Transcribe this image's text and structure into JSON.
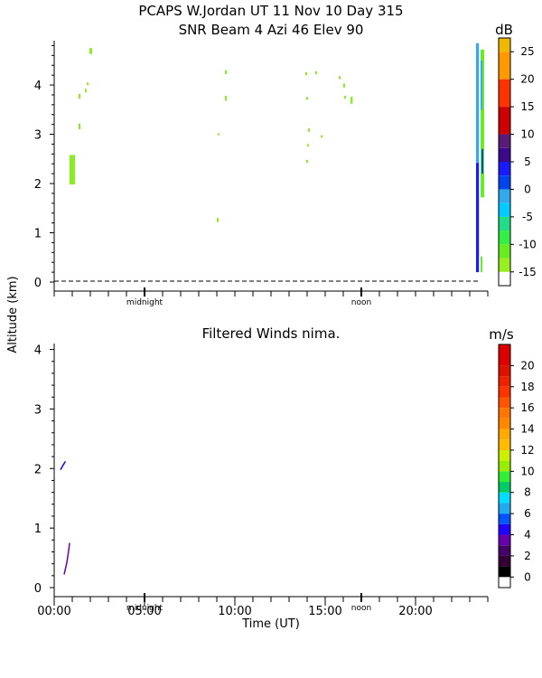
{
  "chart_data": [
    {
      "type": "heatmap",
      "title": "PCAPS W.Jordan UT  11 Nov 10 Day 315",
      "subtitle": "SNR Beam 4 Azi  46 Elev 90",
      "ylabel": "Altitude (km)",
      "xlabel": "",
      "x_unit": "hours UT",
      "xlim": [
        0,
        24
      ],
      "ylim": [
        0,
        4.9
      ],
      "y_ticks": [
        0,
        1,
        2,
        3,
        4
      ],
      "time_markers": [
        {
          "label": "midnight",
          "x": 5.0
        },
        {
          "label": "noon",
          "x": 17.0
        }
      ],
      "colorbar": {
        "unit": "dB",
        "ticks": [
          25,
          20,
          15,
          10,
          5,
          0,
          -5,
          -10,
          -15
        ],
        "bands": [
          {
            "from": 25,
            "to": 27.5,
            "color": "#f0b800"
          },
          {
            "from": 20,
            "to": 25,
            "color": "#ff9900"
          },
          {
            "from": 15,
            "to": 20,
            "color": "#ff3300"
          },
          {
            "from": 10,
            "to": 15,
            "color": "#cc0000"
          },
          {
            "from": 7.5,
            "to": 10,
            "color": "#5a1a78"
          },
          {
            "from": 5,
            "to": 7.5,
            "color": "#3a0a8a"
          },
          {
            "from": 2.5,
            "to": 5,
            "color": "#1a1aff"
          },
          {
            "from": 0,
            "to": 2.5,
            "color": "#0044ee"
          },
          {
            "from": -2.5,
            "to": 0,
            "color": "#33aaee"
          },
          {
            "from": -5,
            "to": -2.5,
            "color": "#00ccff"
          },
          {
            "from": -7.5,
            "to": -5,
            "color": "#22dd88"
          },
          {
            "from": -10,
            "to": -7.5,
            "color": "#33ee44"
          },
          {
            "from": -12.5,
            "to": -10,
            "color": "#66ee22"
          },
          {
            "from": -15,
            "to": -12.5,
            "color": "#99ee22"
          }
        ]
      },
      "cells": [
        {
          "x": 0.85,
          "y0": 1.98,
          "y1": 2.58,
          "w": 0.3,
          "color": "#88ee22"
        },
        {
          "x": 1.35,
          "y0": 3.1,
          "y1": 3.22,
          "w": 0.1,
          "color": "#88ee22"
        },
        {
          "x": 1.35,
          "y0": 3.72,
          "y1": 3.82,
          "w": 0.1,
          "color": "#88ee22"
        },
        {
          "x": 1.7,
          "y0": 3.85,
          "y1": 3.92,
          "w": 0.08,
          "color": "#88ee22"
        },
        {
          "x": 1.8,
          "y0": 4.0,
          "y1": 4.05,
          "w": 0.06,
          "color": "#88ee22"
        },
        {
          "x": 1.95,
          "y0": 4.63,
          "y1": 4.75,
          "w": 0.15,
          "color": "#88ee22"
        },
        {
          "x": 9.05,
          "y0": 2.98,
          "y1": 3.02,
          "w": 0.05,
          "color": "#88ee22"
        },
        {
          "x": 9.0,
          "y0": 1.22,
          "y1": 1.3,
          "w": 0.05,
          "color": "#88ee22"
        },
        {
          "x": 9.45,
          "y0": 3.68,
          "y1": 3.78,
          "w": 0.06,
          "color": "#88ee22"
        },
        {
          "x": 9.45,
          "y0": 4.22,
          "y1": 4.3,
          "w": 0.06,
          "color": "#88ee22"
        },
        {
          "x": 13.9,
          "y0": 4.2,
          "y1": 4.26,
          "w": 0.06,
          "color": "#88ee22"
        },
        {
          "x": 13.95,
          "y0": 3.7,
          "y1": 3.76,
          "w": 0.06,
          "color": "#88ee22"
        },
        {
          "x": 14.05,
          "y0": 3.05,
          "y1": 3.12,
          "w": 0.05,
          "color": "#88ee22"
        },
        {
          "x": 14.0,
          "y0": 2.75,
          "y1": 2.8,
          "w": 0.05,
          "color": "#88ee22"
        },
        {
          "x": 13.95,
          "y0": 2.42,
          "y1": 2.48,
          "w": 0.05,
          "color": "#88ee22"
        },
        {
          "x": 14.45,
          "y0": 4.22,
          "y1": 4.28,
          "w": 0.05,
          "color": "#88ee22"
        },
        {
          "x": 14.75,
          "y0": 2.93,
          "y1": 2.98,
          "w": 0.05,
          "color": "#88ee22"
        },
        {
          "x": 15.75,
          "y0": 4.12,
          "y1": 4.18,
          "w": 0.05,
          "color": "#88ee22"
        },
        {
          "x": 16.0,
          "y0": 3.95,
          "y1": 4.03,
          "w": 0.06,
          "color": "#88ee22"
        },
        {
          "x": 16.05,
          "y0": 3.72,
          "y1": 3.78,
          "w": 0.05,
          "color": "#88ee22"
        },
        {
          "x": 16.4,
          "y0": 3.62,
          "y1": 3.76,
          "w": 0.12,
          "color": "#88ee22"
        },
        {
          "x": 23.35,
          "y0": 2.42,
          "y1": 4.85,
          "w": 0.16,
          "color": "#33aaee"
        },
        {
          "x": 23.35,
          "y0": 0.2,
          "y1": 2.42,
          "w": 0.16,
          "color": "#1a1aff"
        },
        {
          "x": 23.6,
          "y0": 1.72,
          "y1": 4.72,
          "w": 0.2,
          "color": "#66ee22"
        },
        {
          "x": 23.6,
          "y0": 3.5,
          "y1": 4.5,
          "w": 0.08,
          "color": "#33aaee"
        },
        {
          "x": 23.65,
          "y0": 2.2,
          "y1": 2.7,
          "w": 0.05,
          "color": "#0044ee"
        },
        {
          "x": 23.6,
          "y0": 0.2,
          "y1": 0.52,
          "w": 0.1,
          "color": "#66ee22"
        }
      ]
    },
    {
      "type": "line",
      "title": "Filtered Winds nima.",
      "xlabel": "Time (UT)",
      "ylabel": "Altitude (km)",
      "xlim": [
        0,
        24
      ],
      "ylim": [
        0,
        4.1
      ],
      "x_ticks": [
        "00:00",
        "05:00",
        "10:00",
        "15:00",
        "20:00"
      ],
      "y_ticks": [
        0,
        1,
        2,
        3,
        4
      ],
      "time_markers": [
        {
          "label": "midnight",
          "x": 5.0
        },
        {
          "label": "noon",
          "x": 17.0
        }
      ],
      "colorbar": {
        "unit": "m/s",
        "ticks": [
          0,
          2,
          4,
          6,
          8,
          10,
          12,
          14,
          16,
          18,
          20
        ],
        "bands": [
          {
            "from": 0,
            "to": 1,
            "color": "#000000"
          },
          {
            "from": 1,
            "to": 2,
            "color": "#330033"
          },
          {
            "from": 2,
            "to": 3,
            "color": "#440066"
          },
          {
            "from": 3,
            "to": 4,
            "color": "#6600aa"
          },
          {
            "from": 4,
            "to": 5,
            "color": "#2200ff"
          },
          {
            "from": 5,
            "to": 6,
            "color": "#0055ff"
          },
          {
            "from": 6,
            "to": 7,
            "color": "#22aaee"
          },
          {
            "from": 7,
            "to": 8,
            "color": "#00ddff"
          },
          {
            "from": 8,
            "to": 9,
            "color": "#00cc66"
          },
          {
            "from": 9,
            "to": 10,
            "color": "#33ee33"
          },
          {
            "from": 10,
            "to": 11,
            "color": "#99ee00"
          },
          {
            "from": 11,
            "to": 12,
            "color": "#ccee00"
          },
          {
            "from": 12,
            "to": 13,
            "color": "#ffbb00"
          },
          {
            "from": 13,
            "to": 14,
            "color": "#ffaa00"
          },
          {
            "from": 14,
            "to": 15,
            "color": "#ff8800"
          },
          {
            "from": 15,
            "to": 16,
            "color": "#ff7700"
          },
          {
            "from": 16,
            "to": 17,
            "color": "#ff5500"
          },
          {
            "from": 17,
            "to": 18,
            "color": "#ff3300"
          },
          {
            "from": 18,
            "to": 19,
            "color": "#ee2200"
          },
          {
            "from": 19,
            "to": 20,
            "color": "#dd1100"
          },
          {
            "from": 20,
            "to": 22,
            "color": "#dd0000"
          }
        ]
      },
      "series": [
        {
          "color": "#2200ff",
          "points": [
            [
              0.35,
              1.98
            ],
            [
              0.5,
              2.06
            ],
            [
              0.62,
              2.12
            ]
          ]
        },
        {
          "color": "#6600aa",
          "points": [
            [
              0.55,
              0.22
            ],
            [
              0.7,
              0.42
            ],
            [
              0.8,
              0.62
            ],
            [
              0.85,
              0.75
            ]
          ]
        }
      ]
    }
  ]
}
